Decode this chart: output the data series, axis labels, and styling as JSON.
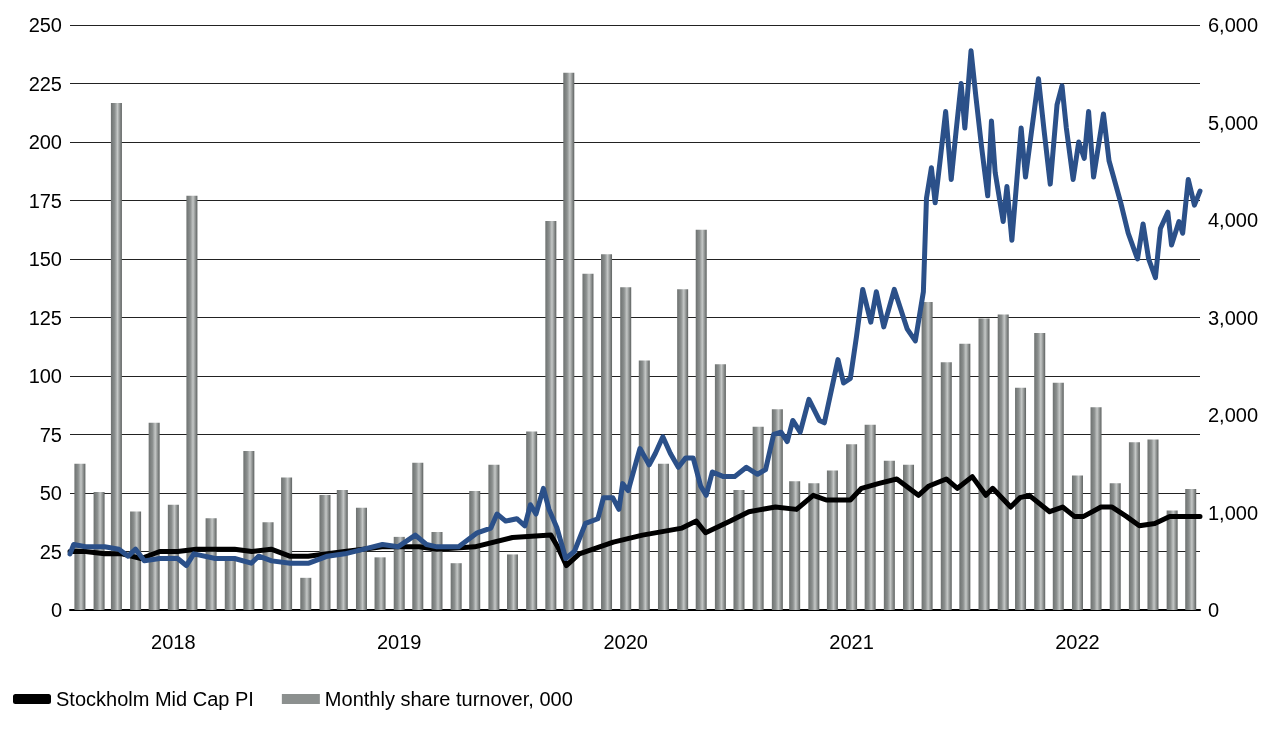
{
  "chart_data": {
    "type": "line",
    "xlim": [
      "2017-12-16",
      "2022-12-16"
    ],
    "xticks": [
      {
        "value": "2018-06",
        "label": "2018"
      },
      {
        "value": "2019-06",
        "label": "2019"
      },
      {
        "value": "2020-06",
        "label": "2020"
      },
      {
        "value": "2021-06",
        "label": "2021"
      },
      {
        "value": "2022-06",
        "label": "2022"
      }
    ],
    "ylim": [
      0,
      250
    ],
    "yticks": [
      0,
      25,
      50,
      75,
      100,
      125,
      150,
      175,
      200,
      225,
      250
    ],
    "y2lim": [
      0,
      6000
    ],
    "y2ticks": [
      0,
      {
        "value": 1000,
        "label": "1,000"
      },
      {
        "value": 2000,
        "label": "2,000"
      },
      {
        "value": 3000,
        "label": "3,000"
      },
      {
        "value": 4000,
        "label": "4,000"
      },
      {
        "value": 5000,
        "label": "5,000"
      },
      {
        "value": 6000,
        "label": "6,000"
      }
    ],
    "grid": "y",
    "legend": "bottom left",
    "marker": "none",
    "line_style": "solid",
    "series": [
      {
        "name": "Monthly share turnover, 000",
        "type": "bar",
        "axis": "y2",
        "color": "#8c908f",
        "x": [
          "2018-01",
          "2018-02",
          "2018-03",
          "2018-04",
          "2018-05",
          "2018-06",
          "2018-07",
          "2018-08",
          "2018-09",
          "2018-10",
          "2018-11",
          "2018-12",
          "2019-01",
          "2019-02",
          "2019-03",
          "2019-04",
          "2019-05",
          "2019-06",
          "2019-07",
          "2019-08",
          "2019-09",
          "2019-10",
          "2019-11",
          "2019-12",
          "2020-01",
          "2020-02",
          "2020-03",
          "2020-04",
          "2020-05",
          "2020-06",
          "2020-07",
          "2020-08",
          "2020-09",
          "2020-10",
          "2020-11",
          "2020-12",
          "2021-01",
          "2021-02",
          "2021-03",
          "2021-04",
          "2021-05",
          "2021-06",
          "2021-07",
          "2021-08",
          "2021-09",
          "2021-10",
          "2021-11",
          "2021-12",
          "2022-01",
          "2022-02",
          "2022-03",
          "2022-04",
          "2022-05",
          "2022-06",
          "2022-07",
          "2022-08",
          "2022-09",
          "2022-10",
          "2022-11",
          "2022-12"
        ],
        "values": [
          1500,
          1210,
          5200,
          1010,
          1920,
          1080,
          4250,
          940,
          530,
          1630,
          900,
          1360,
          330,
          1180,
          1230,
          1050,
          540,
          750,
          1510,
          800,
          480,
          1220,
          1490,
          570,
          1830,
          3990,
          5510,
          3450,
          3650,
          3310,
          2560,
          1500,
          3290,
          3900,
          2520,
          1230,
          1880,
          2060,
          1320,
          1300,
          1430,
          1700,
          1900,
          1530,
          1490,
          3160,
          2540,
          2730,
          2990,
          3030,
          2280,
          2840,
          2330,
          1380,
          2080,
          1300,
          1720,
          1750,
          1020,
          1240
        ]
      },
      {
        "name": "Stockholm Mid Cap PI",
        "color": "#000000",
        "x": [
          "2017-12-16",
          "2018-01-10",
          "2018-02-10",
          "2018-03-10",
          "2018-04-10",
          "2018-05-10",
          "2018-06-08",
          "2018-07-08",
          "2018-08-08",
          "2018-09-08",
          "2018-10-06",
          "2018-11-06",
          "2018-12-06",
          "2019-01-05",
          "2019-02-05",
          "2019-03-05",
          "2019-04-04",
          "2019-05-04",
          "2019-06-03",
          "2019-07-03",
          "2019-08-01",
          "2019-10-01",
          "2019-12-01",
          "2020-02-01",
          "2020-02-12",
          "2020-02-26",
          "2020-03-18",
          "2020-05-12",
          "2020-06-28",
          "2020-08-31",
          "2020-09-23",
          "2020-10-08",
          "2020-11-17",
          "2020-12-17",
          "2021-01-29",
          "2021-03-04",
          "2021-03-31",
          "2021-04-21",
          "2021-05-30",
          "2021-06-17",
          "2021-07-14",
          "2021-08-13",
          "2021-09-17",
          "2021-10-04",
          "2021-11-01",
          "2021-11-19",
          "2021-12-13",
          "2022-01-04",
          "2022-01-15",
          "2022-02-13",
          "2022-02-28",
          "2022-03-15",
          "2022-04-17",
          "2022-05-08",
          "2022-05-27",
          "2022-06-11",
          "2022-07-09",
          "2022-07-27",
          "2022-08-19",
          "2022-09-09",
          "2022-10-04",
          "2022-10-28",
          "2022-11-21",
          "2022-12-16"
        ],
        "values": [
          25,
          25,
          24,
          24,
          22,
          25,
          25,
          26,
          26,
          26,
          25,
          26,
          23,
          23,
          24,
          25,
          26,
          27,
          27,
          27,
          26,
          27,
          31,
          32,
          27,
          19,
          24,
          29,
          32,
          35,
          38,
          33,
          38,
          42,
          44,
          43,
          49,
          47,
          47,
          52,
          54,
          56,
          49,
          53,
          56,
          52,
          57,
          49,
          52,
          44,
          48,
          49,
          42,
          44,
          40,
          40,
          44,
          44,
          40,
          36,
          37,
          40,
          40,
          40
        ]
      },
      {
        "color": "#2b5089",
        "x": [
          "2017-12-16",
          "2017-12-22",
          "2018-01-10",
          "2018-02-10",
          "2018-03-05",
          "2018-03-20",
          "2018-04-01",
          "2018-04-15",
          "2018-05-10",
          "2018-06-08",
          "2018-06-22",
          "2018-07-04",
          "2018-08-08",
          "2018-09-08",
          "2018-10-05",
          "2018-10-17",
          "2018-11-07",
          "2018-12-07",
          "2019-01-06",
          "2019-02-05",
          "2019-03-05",
          "2019-04-05",
          "2019-05-05",
          "2019-05-30",
          "2019-06-27",
          "2019-07-15",
          "2019-08-01",
          "2019-09-05",
          "2019-10-05",
          "2019-10-27",
          "2019-11-06",
          "2019-11-20",
          "2019-12-08",
          "2019-12-21",
          "2019-12-30",
          "2020-01-08",
          "2020-01-20",
          "2020-01-29",
          "2020-02-11",
          "2020-02-25",
          "2020-03-10",
          "2020-03-28",
          "2020-04-17",
          "2020-04-26",
          "2020-05-11",
          "2020-05-21",
          "2020-05-27",
          "2020-06-05",
          "2020-06-24",
          "2020-07-09",
          "2020-07-19",
          "2020-07-31",
          "2020-08-12",
          "2020-08-25",
          "2020-09-06",
          "2020-09-18",
          "2020-09-30",
          "2020-10-09",
          "2020-10-19",
          "2020-11-06",
          "2020-11-24",
          "2020-12-13",
          "2020-12-31",
          "2021-01-13",
          "2021-01-26",
          "2021-02-07",
          "2021-02-17",
          "2021-02-26",
          "2021-03-10",
          "2021-03-24",
          "2021-04-10",
          "2021-04-18",
          "2021-05-10",
          "2021-05-19",
          "2021-05-30",
          "2021-06-09",
          "2021-06-19",
          "2021-07-02",
          "2021-07-11",
          "2021-07-23",
          "2021-08-09",
          "2021-08-30",
          "2021-09-12",
          "2021-09-25",
          "2021-09-30",
          "2021-10-08",
          "2021-10-14",
          "2021-10-22",
          "2021-10-31",
          "2021-11-09",
          "2021-11-17",
          "2021-11-25",
          "2021-12-01",
          "2021-12-11",
          "2021-12-19",
          "2021-12-28",
          "2022-01-07",
          "2022-01-13",
          "2022-01-19",
          "2022-02-01",
          "2022-02-07",
          "2022-02-15",
          "2022-03-02",
          "2022-03-09",
          "2022-03-18",
          "2022-03-30",
          "2022-04-08",
          "2022-04-18",
          "2022-04-29",
          "2022-05-07",
          "2022-05-14",
          "2022-05-25",
          "2022-06-03",
          "2022-06-12",
          "2022-06-19",
          "2022-06-27",
          "2022-07-13",
          "2022-07-22",
          "2022-08-10",
          "2022-08-22",
          "2022-09-06",
          "2022-09-15",
          "2022-09-24",
          "2022-10-05",
          "2022-10-13",
          "2022-10-25",
          "2022-10-31",
          "2022-11-12",
          "2022-11-18",
          "2022-11-27",
          "2022-12-07",
          "2022-12-16"
        ],
        "values": [
          24,
          28,
          27,
          27,
          26,
          23,
          26,
          21,
          22,
          22,
          19,
          24,
          22,
          22,
          20,
          23,
          21,
          20,
          20,
          23,
          24,
          26,
          28,
          27,
          32,
          28,
          27,
          27,
          33,
          35,
          41,
          38,
          39,
          36,
          45,
          41,
          52,
          43,
          35,
          22,
          25,
          37,
          39,
          48,
          48,
          43,
          54,
          51,
          69,
          62,
          67,
          74,
          67,
          61,
          65,
          65,
          53,
          49,
          59,
          57,
          57,
          61,
          58,
          60,
          75,
          76,
          72,
          81,
          76,
          90,
          81,
          80,
          107,
          97,
          99,
          117,
          137,
          123,
          136,
          121,
          137,
          120,
          115,
          136,
          176,
          189,
          174,
          192,
          213,
          184,
          205,
          225,
          206,
          239,
          219,
          198,
          177,
          209,
          187,
          166,
          181,
          158,
          206,
          185,
          203,
          227,
          205,
          182,
          216,
          224,
          206,
          184,
          200,
          193,
          213,
          185,
          212,
          192,
          174,
          161,
          150,
          165,
          150,
          142,
          163,
          170,
          156,
          166,
          161,
          184,
          173,
          179
        ]
      }
    ]
  }
}
